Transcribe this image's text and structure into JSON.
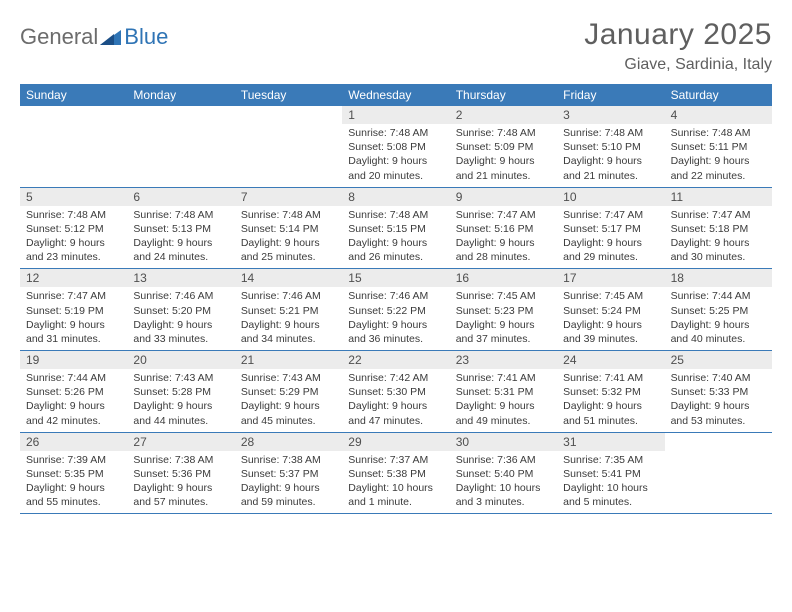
{
  "brand": {
    "part1": "General",
    "part2": "Blue"
  },
  "title": "January 2025",
  "location": "Giave, Sardinia, Italy",
  "colors": {
    "header_bar": "#3a7ab8",
    "daynum_bg": "#ececec",
    "text_gray": "#5f5f5f",
    "body_text": "#3b3b3b",
    "brand_gray": "#6c6c6c",
    "brand_blue": "#2f74b5",
    "white": "#ffffff"
  },
  "typography": {
    "title_fontsize": 30,
    "location_fontsize": 16,
    "dow_fontsize": 12,
    "daynum_fontsize": 12,
    "body_fontsize": 10.5
  },
  "days_of_week": [
    "Sunday",
    "Monday",
    "Tuesday",
    "Wednesday",
    "Thursday",
    "Friday",
    "Saturday"
  ],
  "weeks": [
    [
      null,
      null,
      null,
      {
        "n": "1",
        "sr": "7:48 AM",
        "ss": "5:08 PM",
        "dh": "9",
        "dm": "20"
      },
      {
        "n": "2",
        "sr": "7:48 AM",
        "ss": "5:09 PM",
        "dh": "9",
        "dm": "21"
      },
      {
        "n": "3",
        "sr": "7:48 AM",
        "ss": "5:10 PM",
        "dh": "9",
        "dm": "21"
      },
      {
        "n": "4",
        "sr": "7:48 AM",
        "ss": "5:11 PM",
        "dh": "9",
        "dm": "22"
      }
    ],
    [
      {
        "n": "5",
        "sr": "7:48 AM",
        "ss": "5:12 PM",
        "dh": "9",
        "dm": "23"
      },
      {
        "n": "6",
        "sr": "7:48 AM",
        "ss": "5:13 PM",
        "dh": "9",
        "dm": "24"
      },
      {
        "n": "7",
        "sr": "7:48 AM",
        "ss": "5:14 PM",
        "dh": "9",
        "dm": "25"
      },
      {
        "n": "8",
        "sr": "7:48 AM",
        "ss": "5:15 PM",
        "dh": "9",
        "dm": "26"
      },
      {
        "n": "9",
        "sr": "7:47 AM",
        "ss": "5:16 PM",
        "dh": "9",
        "dm": "28"
      },
      {
        "n": "10",
        "sr": "7:47 AM",
        "ss": "5:17 PM",
        "dh": "9",
        "dm": "29"
      },
      {
        "n": "11",
        "sr": "7:47 AM",
        "ss": "5:18 PM",
        "dh": "9",
        "dm": "30"
      }
    ],
    [
      {
        "n": "12",
        "sr": "7:47 AM",
        "ss": "5:19 PM",
        "dh": "9",
        "dm": "31"
      },
      {
        "n": "13",
        "sr": "7:46 AM",
        "ss": "5:20 PM",
        "dh": "9",
        "dm": "33"
      },
      {
        "n": "14",
        "sr": "7:46 AM",
        "ss": "5:21 PM",
        "dh": "9",
        "dm": "34"
      },
      {
        "n": "15",
        "sr": "7:46 AM",
        "ss": "5:22 PM",
        "dh": "9",
        "dm": "36"
      },
      {
        "n": "16",
        "sr": "7:45 AM",
        "ss": "5:23 PM",
        "dh": "9",
        "dm": "37"
      },
      {
        "n": "17",
        "sr": "7:45 AM",
        "ss": "5:24 PM",
        "dh": "9",
        "dm": "39"
      },
      {
        "n": "18",
        "sr": "7:44 AM",
        "ss": "5:25 PM",
        "dh": "9",
        "dm": "40"
      }
    ],
    [
      {
        "n": "19",
        "sr": "7:44 AM",
        "ss": "5:26 PM",
        "dh": "9",
        "dm": "42"
      },
      {
        "n": "20",
        "sr": "7:43 AM",
        "ss": "5:28 PM",
        "dh": "9",
        "dm": "44"
      },
      {
        "n": "21",
        "sr": "7:43 AM",
        "ss": "5:29 PM",
        "dh": "9",
        "dm": "45"
      },
      {
        "n": "22",
        "sr": "7:42 AM",
        "ss": "5:30 PM",
        "dh": "9",
        "dm": "47"
      },
      {
        "n": "23",
        "sr": "7:41 AM",
        "ss": "5:31 PM",
        "dh": "9",
        "dm": "49"
      },
      {
        "n": "24",
        "sr": "7:41 AM",
        "ss": "5:32 PM",
        "dh": "9",
        "dm": "51"
      },
      {
        "n": "25",
        "sr": "7:40 AM",
        "ss": "5:33 PM",
        "dh": "9",
        "dm": "53"
      }
    ],
    [
      {
        "n": "26",
        "sr": "7:39 AM",
        "ss": "5:35 PM",
        "dh": "9",
        "dm": "55"
      },
      {
        "n": "27",
        "sr": "7:38 AM",
        "ss": "5:36 PM",
        "dh": "9",
        "dm": "57"
      },
      {
        "n": "28",
        "sr": "7:38 AM",
        "ss": "5:37 PM",
        "dh": "9",
        "dm": "59"
      },
      {
        "n": "29",
        "sr": "7:37 AM",
        "ss": "5:38 PM",
        "dh": "10",
        "dm": "1"
      },
      {
        "n": "30",
        "sr": "7:36 AM",
        "ss": "5:40 PM",
        "dh": "10",
        "dm": "3"
      },
      {
        "n": "31",
        "sr": "7:35 AM",
        "ss": "5:41 PM",
        "dh": "10",
        "dm": "5"
      },
      null
    ]
  ],
  "labels": {
    "sunrise_prefix": "Sunrise: ",
    "sunset_prefix": "Sunset: ",
    "daylight_prefix": "Daylight: ",
    "hours_word": " hours",
    "and_word": "and ",
    "minute_word": " minute.",
    "minutes_word": " minutes."
  }
}
